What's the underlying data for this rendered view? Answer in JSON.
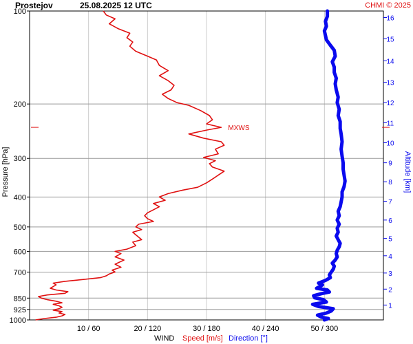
{
  "chart_data": {
    "type": "line",
    "title": {
      "station": "Prostejov",
      "datetime": "25.08.2025 12 UTC",
      "credit": "CHMI © 2025"
    },
    "ylabel": "Pressure [hPa]",
    "y2label": "Altitude [km]",
    "y_scale": "log",
    "ylim": [
      1000,
      100
    ],
    "yticks": [
      100,
      200,
      300,
      400,
      500,
      600,
      700,
      850,
      925,
      1000
    ],
    "altitude_ticks": [
      {
        "km": 1,
        "hpa": 895
      },
      {
        "km": 2,
        "hpa": 795
      },
      {
        "km": 3,
        "hpa": 705
      },
      {
        "km": 4,
        "hpa": 620
      },
      {
        "km": 5,
        "hpa": 545
      },
      {
        "km": 6,
        "hpa": 475
      },
      {
        "km": 7,
        "hpa": 413
      },
      {
        "km": 8,
        "hpa": 357
      },
      {
        "km": 9,
        "hpa": 310
      },
      {
        "km": 10,
        "hpa": 267
      },
      {
        "km": 11,
        "hpa": 230
      },
      {
        "km": 12,
        "hpa": 198
      },
      {
        "km": 13,
        "hpa": 170
      },
      {
        "km": 14,
        "hpa": 145
      },
      {
        "km": 15,
        "hpa": 123
      },
      {
        "km": 16,
        "hpa": 105
      }
    ],
    "xlim": [
      0,
      60
    ],
    "xticks": [
      {
        "value": 10,
        "label": "10 / 60"
      },
      {
        "value": 20,
        "label": "20 / 120"
      },
      {
        "value": 30,
        "label": "30 / 180"
      },
      {
        "value": 40,
        "label": "40 / 240"
      },
      {
        "value": 50,
        "label": "50 / 300"
      }
    ],
    "xlabel": {
      "wind": "WIND",
      "speed": "Speed [m/s]",
      "direction": "Direction [°]"
    },
    "grid": true,
    "annotations": [
      {
        "text": "MXWS",
        "hpa": 238,
        "speed": 32.5
      }
    ],
    "colors": {
      "speed": "#e01010",
      "direction": "#0a0aee",
      "axis": "#000000",
      "grid": "#999999",
      "credit": "#e01010",
      "altitude_axis": "#0a0aee",
      "marker": "#e01010"
    },
    "series": [
      {
        "name": "Speed [m/s]",
        "values": [
          [
            1000,
            1
          ],
          [
            990,
            2.5
          ],
          [
            980,
            4.5
          ],
          [
            970,
            5.5
          ],
          [
            960,
            6
          ],
          [
            950,
            5
          ],
          [
            940,
            5.5
          ],
          [
            930,
            4
          ],
          [
            920,
            5
          ],
          [
            910,
            5.5
          ],
          [
            900,
            5
          ],
          [
            890,
            4
          ],
          [
            880,
            5.5
          ],
          [
            870,
            4.5
          ],
          [
            860,
            3
          ],
          [
            850,
            2
          ],
          [
            840,
            1.5
          ],
          [
            830,
            3
          ],
          [
            820,
            6
          ],
          [
            810,
            6.5
          ],
          [
            800,
            4.5
          ],
          [
            790,
            3.5
          ],
          [
            780,
            4
          ],
          [
            770,
            4.5
          ],
          [
            760,
            4
          ],
          [
            750,
            6
          ],
          [
            740,
            9
          ],
          [
            730,
            12
          ],
          [
            720,
            13
          ],
          [
            710,
            13.5
          ],
          [
            700,
            14.5
          ],
          [
            690,
            14
          ],
          [
            675,
            15.5
          ],
          [
            660,
            14.5
          ],
          [
            640,
            16
          ],
          [
            625,
            14.5
          ],
          [
            610,
            15.5
          ],
          [
            600,
            14.5
          ],
          [
            590,
            16.5
          ],
          [
            575,
            18
          ],
          [
            560,
            17.5
          ],
          [
            550,
            19
          ],
          [
            540,
            18.5
          ],
          [
            530,
            18
          ],
          [
            520,
            17.5
          ],
          [
            510,
            19
          ],
          [
            500,
            18
          ],
          [
            490,
            18.5
          ],
          [
            480,
            21
          ],
          [
            470,
            20
          ],
          [
            460,
            19.5
          ],
          [
            450,
            20
          ],
          [
            440,
            21
          ],
          [
            430,
            22
          ],
          [
            420,
            21
          ],
          [
            410,
            23
          ],
          [
            400,
            22
          ],
          [
            390,
            23.5
          ],
          [
            380,
            26
          ],
          [
            372,
            28.5
          ],
          [
            360,
            30
          ],
          [
            350,
            31
          ],
          [
            340,
            32
          ],
          [
            330,
            33
          ],
          [
            320,
            31
          ],
          [
            312,
            30.5
          ],
          [
            305,
            31.5
          ],
          [
            298,
            29.5
          ],
          [
            290,
            32
          ],
          [
            280,
            31.5
          ],
          [
            272,
            33
          ],
          [
            265,
            32.5
          ],
          [
            258,
            29.5
          ],
          [
            250,
            27
          ],
          [
            243,
            30
          ],
          [
            238,
            32.5
          ],
          [
            232,
            30
          ],
          [
            225,
            31
          ],
          [
            218,
            30.5
          ],
          [
            210,
            29
          ],
          [
            202,
            27
          ],
          [
            198,
            25
          ],
          [
            192,
            23.5
          ],
          [
            186,
            22.5
          ],
          [
            180,
            24
          ],
          [
            174,
            24.5
          ],
          [
            168,
            23.5
          ],
          [
            162,
            22
          ],
          [
            156,
            23.5
          ],
          [
            150,
            22
          ],
          [
            144,
            21.5
          ],
          [
            140,
            20
          ],
          [
            135,
            18
          ],
          [
            130,
            17
          ],
          [
            126,
            17.5
          ],
          [
            122,
            16.5
          ],
          [
            118,
            17
          ],
          [
            114,
            15
          ],
          [
            110,
            13.5
          ],
          [
            106,
            14.5
          ],
          [
            103,
            13
          ],
          [
            100,
            12.5
          ]
        ]
      },
      {
        "name": "Direction [°]",
        "values": [
          [
            1000,
            300
          ],
          [
            990,
            304
          ],
          [
            980,
            297
          ],
          [
            965,
            293
          ],
          [
            950,
            302
          ],
          [
            935,
            307
          ],
          [
            920,
            309
          ],
          [
            905,
            294
          ],
          [
            890,
            288
          ],
          [
            875,
            302
          ],
          [
            860,
            299
          ],
          [
            848,
            290
          ],
          [
            835,
            289
          ],
          [
            822,
            297
          ],
          [
            812,
            305
          ],
          [
            800,
            303
          ],
          [
            790,
            292
          ],
          [
            780,
            295
          ],
          [
            770,
            298
          ],
          [
            760,
            294
          ],
          [
            745,
            301
          ],
          [
            730,
            306
          ],
          [
            715,
            305
          ],
          [
            700,
            307
          ],
          [
            685,
            309
          ],
          [
            670,
            310
          ],
          [
            655,
            308
          ],
          [
            640,
            311
          ],
          [
            625,
            313
          ],
          [
            610,
            312
          ],
          [
            595,
            313
          ],
          [
            580,
            315
          ],
          [
            565,
            316
          ],
          [
            550,
            314
          ],
          [
            535,
            312
          ],
          [
            520,
            314
          ],
          [
            505,
            313
          ],
          [
            490,
            315
          ],
          [
            475,
            313
          ],
          [
            460,
            315
          ],
          [
            445,
            314
          ],
          [
            430,
            316
          ],
          [
            415,
            317
          ],
          [
            400,
            318
          ],
          [
            385,
            318
          ],
          [
            370,
            320
          ],
          [
            355,
            321
          ],
          [
            340,
            320
          ],
          [
            325,
            319
          ],
          [
            310,
            319
          ],
          [
            295,
            318
          ],
          [
            280,
            317
          ],
          [
            265,
            318
          ],
          [
            250,
            317
          ],
          [
            240,
            316
          ],
          [
            228,
            316
          ],
          [
            218,
            314
          ],
          [
            208,
            315
          ],
          [
            198,
            313
          ],
          [
            190,
            314
          ],
          [
            180,
            312
          ],
          [
            172,
            311
          ],
          [
            165,
            312
          ],
          [
            158,
            310
          ],
          [
            152,
            310
          ],
          [
            146,
            308
          ],
          [
            140,
            311
          ],
          [
            134,
            310
          ],
          [
            129,
            306
          ],
          [
            124,
            302
          ],
          [
            120,
            301
          ],
          [
            116,
            300
          ],
          [
            112,
            302
          ],
          [
            108,
            301
          ],
          [
            104,
            303
          ],
          [
            100,
            303
          ]
        ]
      }
    ]
  }
}
